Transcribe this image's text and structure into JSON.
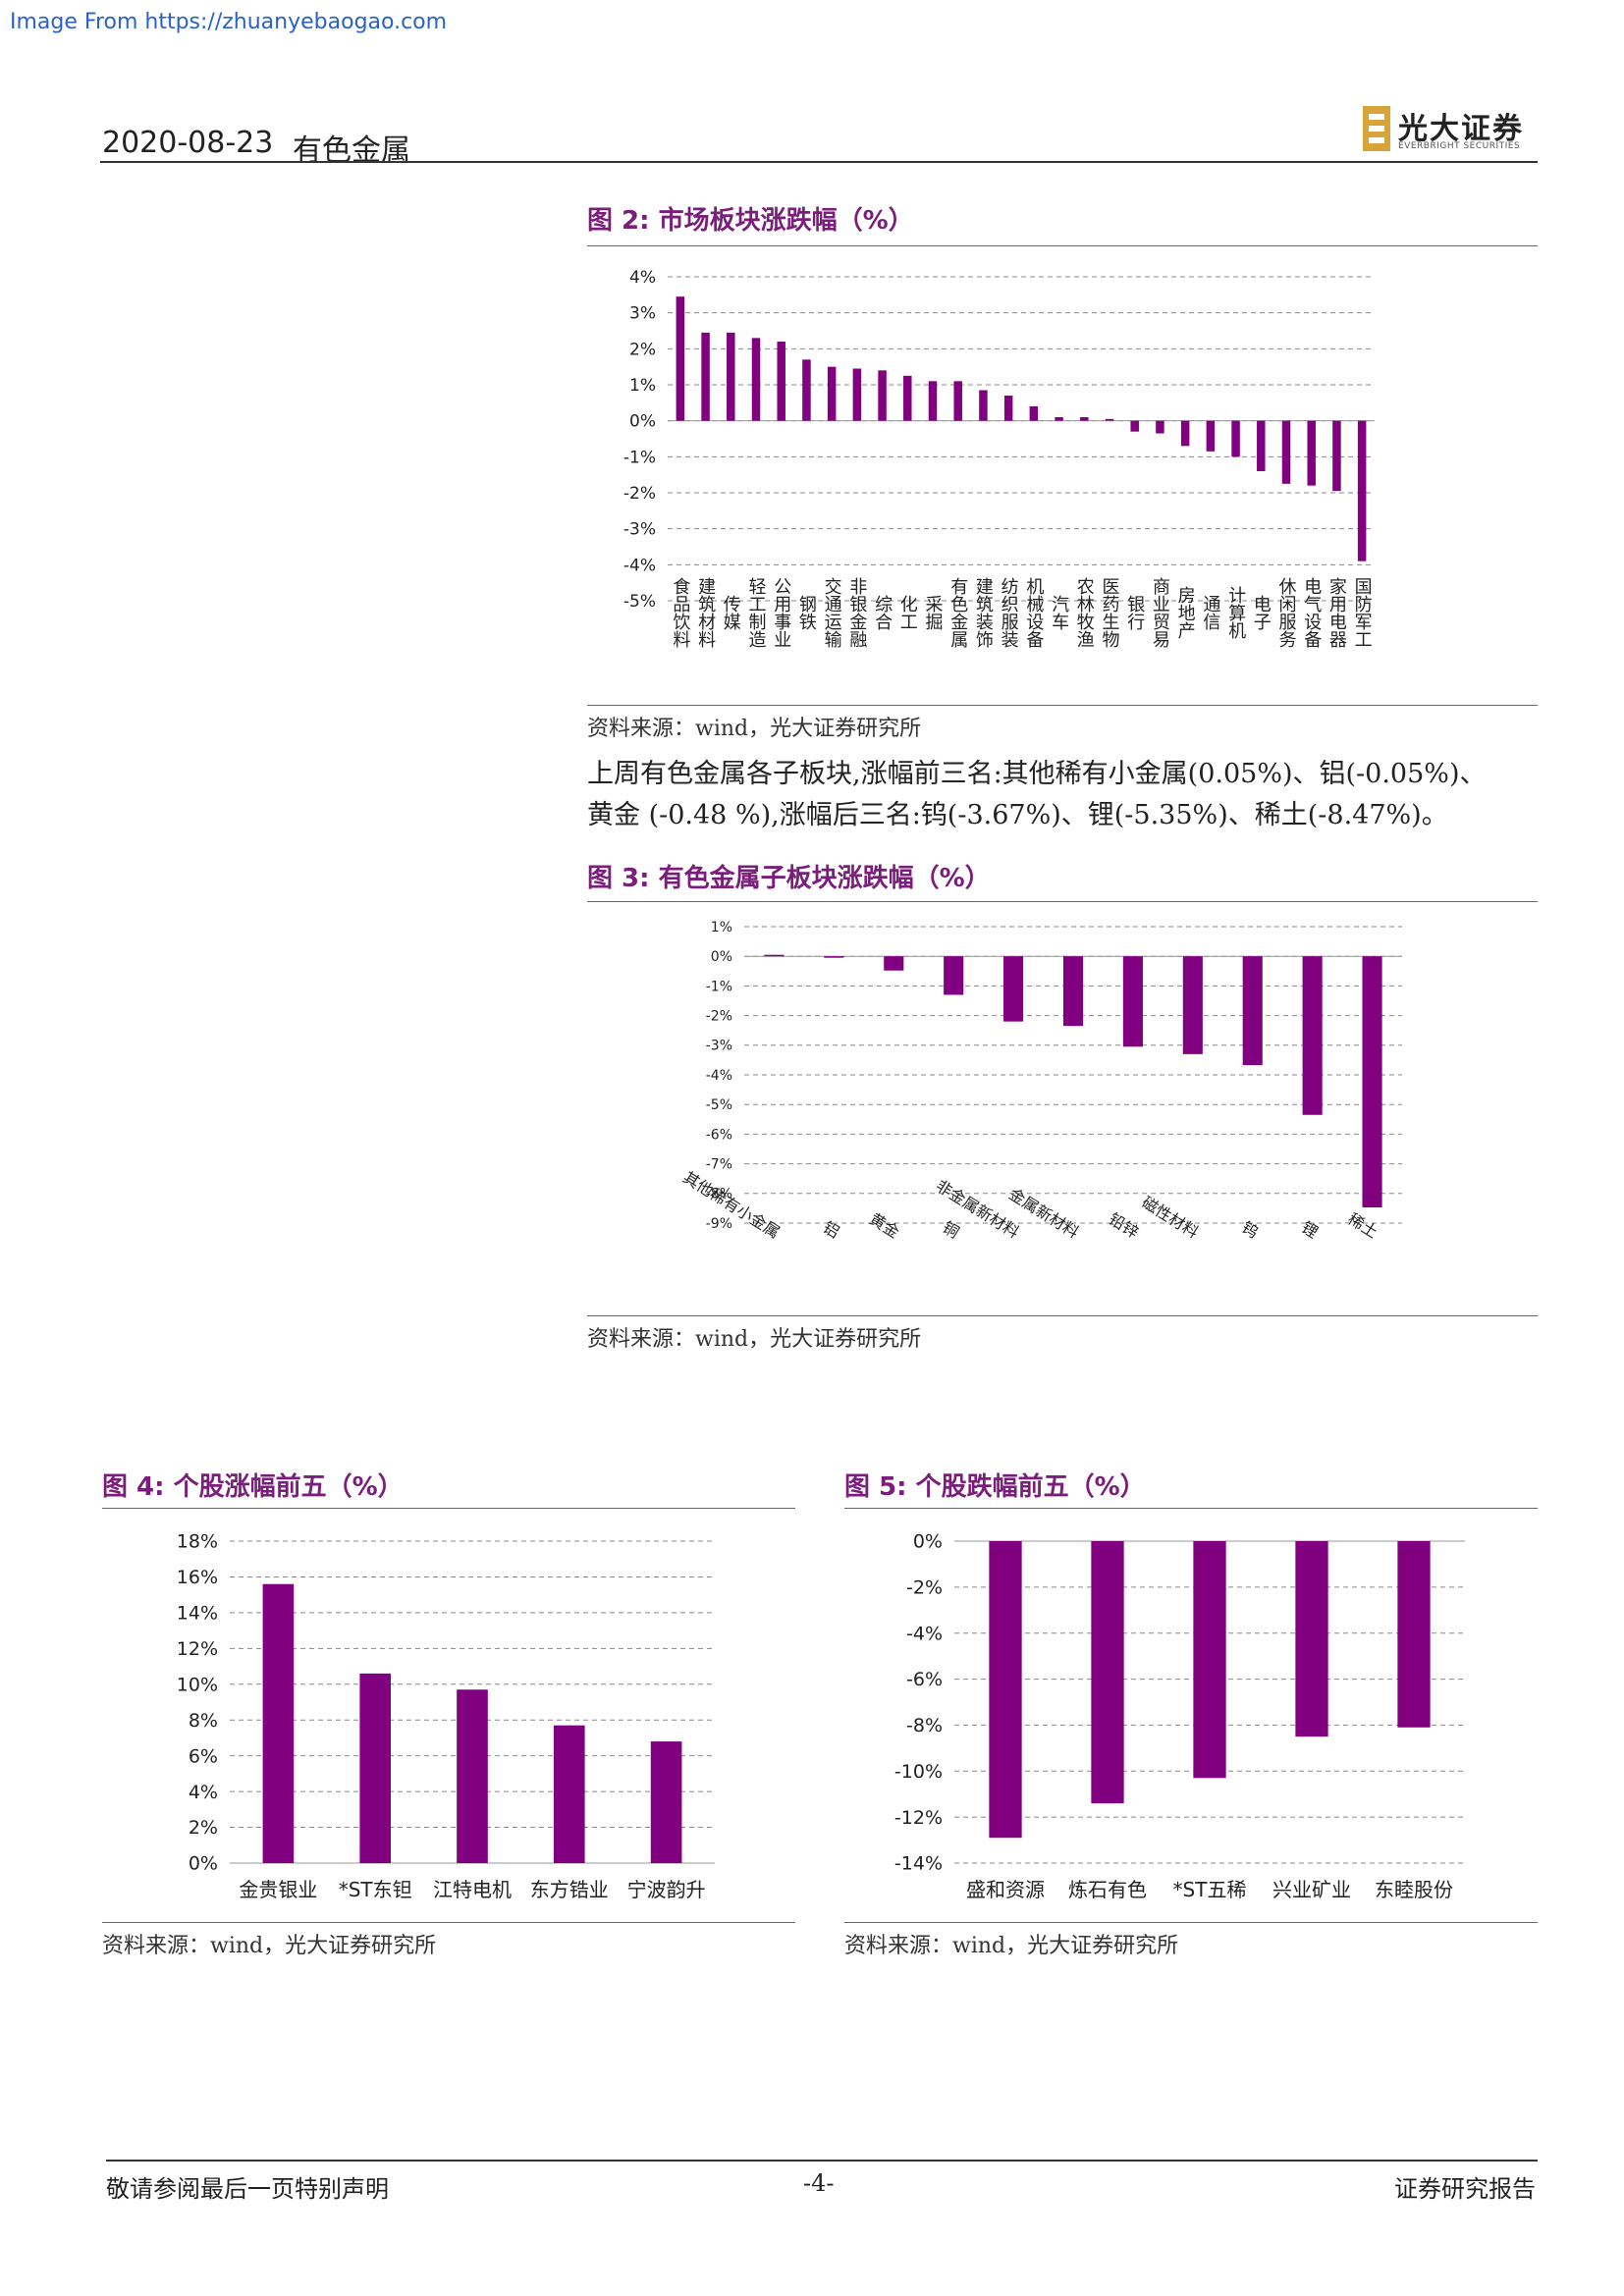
{
  "watermark": "Image From https://zhuanyebaogao.com",
  "header": {
    "date": "2020-08-23",
    "industry": "有色金属",
    "logo_cn": "光大证券",
    "logo_en": "EVERBRIGHT SECURITIES"
  },
  "colors": {
    "bar": "#800080",
    "accent": "#7b1e7b"
  },
  "fig2": {
    "title": "图 2:  市场板块涨跌幅（%）",
    "source": "资料来源：wind，光大证券研究所",
    "chart_data": {
      "type": "bar",
      "categories": [
        "食品饮料",
        "建筑材料",
        "传媒",
        "轻工制造",
        "公用事业",
        "钢铁",
        "交通运输",
        "非银金融",
        "综合",
        "化工",
        "采掘",
        "有色金属",
        "建筑装饰",
        "纺织服装",
        "机械设备",
        "汽车",
        "农林牧渔",
        "医药生物",
        "银行",
        "商业贸易",
        "房地产",
        "通信",
        "计算机",
        "电子",
        "休闲服务",
        "电气设备",
        "家用电器",
        "国防军工"
      ],
      "values": [
        3.45,
        2.45,
        2.45,
        2.3,
        2.2,
        1.7,
        1.5,
        1.45,
        1.4,
        1.25,
        1.1,
        1.1,
        0.85,
        0.7,
        0.4,
        0.1,
        0.1,
        0.05,
        -0.3,
        -0.35,
        -0.7,
        -0.85,
        -1.0,
        -1.4,
        -1.75,
        -1.8,
        -1.95,
        -3.9
      ],
      "yticks": [
        "4%",
        "3%",
        "2%",
        "1%",
        "0%",
        "-1%",
        "-2%",
        "-3%",
        "-4%",
        "-5%"
      ],
      "ylim": [
        -5,
        4
      ]
    }
  },
  "paragraph": "上周有色金属各子板块，涨幅前三名：其他稀有小金属（0.05%）、铝（-0.05%）、黄金（-0.48%），涨幅后三名：钨（-3.67%）、锂（-5.35%）、稀土（-8.47%）。",
  "paragraph_lines": [
    "上周有色金属各子板块,涨幅前三名:其他稀有小金属(0.05%)、铝(-0.05%)、",
    "黄金 (-0.48 %),涨幅后三名:钨(-3.67%)、锂(-5.35%)、稀土(-8.47%)。"
  ],
  "fig3": {
    "title": "图 3:  有色金属子板块涨跌幅（%）",
    "source": "资料来源：wind，光大证券研究所",
    "chart_data": {
      "type": "bar",
      "categories": [
        "其他稀有小金属",
        "铝",
        "黄金",
        "铜",
        "非金属新材料",
        "金属新材料",
        "铅锌",
        "磁性材料",
        "钨",
        "锂",
        "稀土"
      ],
      "values": [
        0.05,
        -0.05,
        -0.48,
        -1.3,
        -2.2,
        -2.35,
        -3.05,
        -3.3,
        -3.67,
        -5.35,
        -8.47
      ],
      "yticks": [
        "1%",
        "0%",
        "-1%",
        "-2%",
        "-3%",
        "-4%",
        "-5%",
        "-6%",
        "-7%",
        "-8%",
        "-9%"
      ],
      "ylim": [
        -9,
        1
      ]
    }
  },
  "fig4": {
    "title": "图 4:  个股涨幅前五（%）",
    "source": "资料来源：wind，光大证券研究所",
    "chart_data": {
      "type": "bar",
      "categories": [
        "金贵银业",
        "*ST东钽",
        "江特电机",
        "东方锆业",
        "宁波韵升"
      ],
      "values": [
        15.6,
        10.6,
        9.7,
        7.7,
        6.8
      ],
      "yticks": [
        "18%",
        "16%",
        "14%",
        "12%",
        "10%",
        "8%",
        "6%",
        "4%",
        "2%",
        "0%"
      ],
      "ylim": [
        0,
        18
      ]
    }
  },
  "fig5": {
    "title": "图 5:  个股跌幅前五（%）",
    "source": "资料来源：wind，光大证券研究所",
    "chart_data": {
      "type": "bar",
      "categories": [
        "盛和资源",
        "炼石有色",
        "*ST五稀",
        "兴业矿业",
        "东睦股份"
      ],
      "values": [
        -12.9,
        -11.4,
        -10.3,
        -8.5,
        -8.1
      ],
      "yticks": [
        "0%",
        "-2%",
        "-4%",
        "-6%",
        "-8%",
        "-10%",
        "-12%",
        "-14%"
      ],
      "ylim": [
        -14,
        0
      ]
    }
  },
  "footer": {
    "disclaimer": "敬请参阅最后一页特别声明",
    "page": "-4-",
    "type": "证券研究报告"
  }
}
